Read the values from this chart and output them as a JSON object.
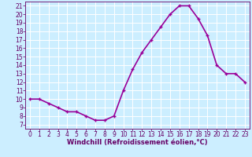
{
  "x": [
    0,
    1,
    2,
    3,
    4,
    5,
    6,
    7,
    8,
    9,
    10,
    11,
    12,
    13,
    14,
    15,
    16,
    17,
    18,
    19,
    20,
    21,
    22,
    23
  ],
  "y": [
    10.0,
    10.0,
    9.5,
    9.0,
    8.5,
    8.5,
    8.0,
    7.5,
    7.5,
    8.0,
    11.0,
    13.5,
    15.5,
    17.0,
    18.5,
    20.0,
    21.0,
    21.0,
    19.5,
    17.5,
    14.0,
    13.0,
    13.0,
    12.0
  ],
  "line_color": "#990099",
  "marker": "+",
  "bg_color": "#cceeff",
  "grid_color": "#ffffff",
  "xlabel": "Windchill (Refroidissement éolien,°C)",
  "xlabel_color": "#660066",
  "tick_color": "#660066",
  "ylim": [
    6.5,
    21.5
  ],
  "xlim": [
    -0.5,
    23.5
  ],
  "yticks": [
    7,
    8,
    9,
    10,
    11,
    12,
    13,
    14,
    15,
    16,
    17,
    18,
    19,
    20,
    21
  ],
  "xticks": [
    0,
    1,
    2,
    3,
    4,
    5,
    6,
    7,
    8,
    9,
    10,
    11,
    12,
    13,
    14,
    15,
    16,
    17,
    18,
    19,
    20,
    21,
    22,
    23
  ],
  "linewidth": 1.2,
  "markersize": 3.5,
  "markeredgewidth": 1.0,
  "tick_fontsize": 5.5,
  "xlabel_fontsize": 6.0
}
